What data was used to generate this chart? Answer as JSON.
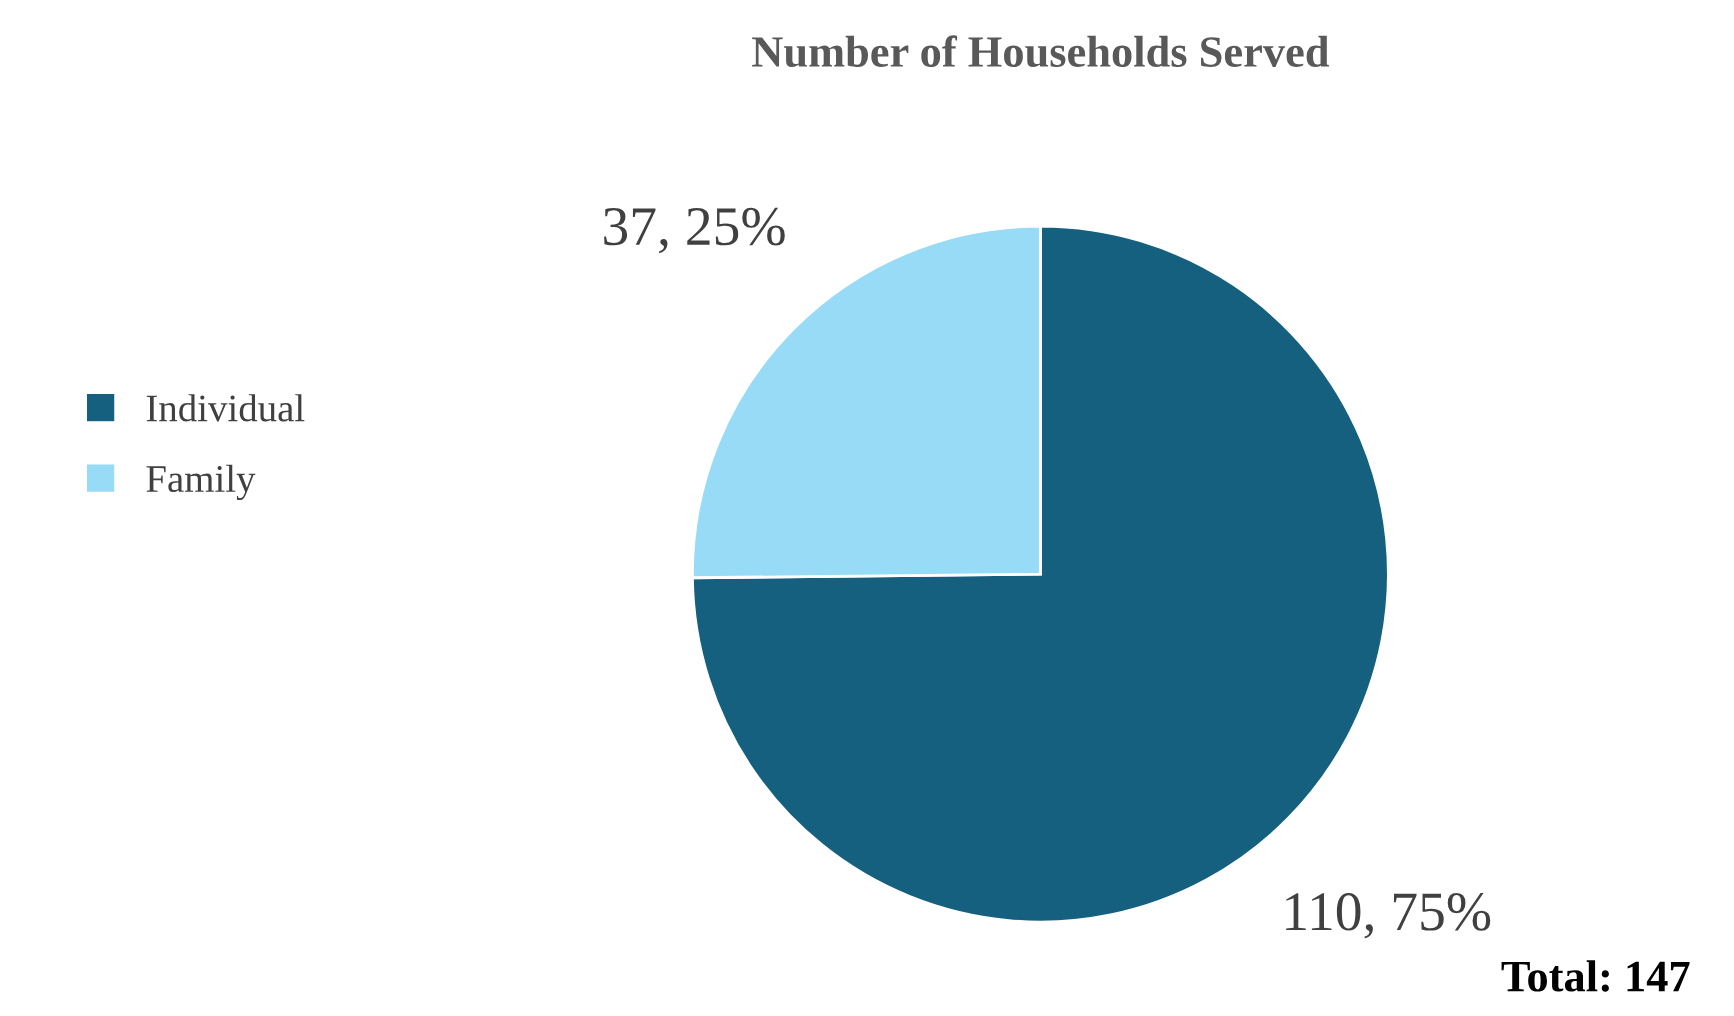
{
  "chart_data": {
    "type": "pie",
    "title": "Number of Households Served",
    "categories": [
      "Individual",
      "Family"
    ],
    "values": [
      110,
      37
    ],
    "colors": [
      "#15607f",
      "#97dbf7"
    ],
    "value_labels": [
      "110, 75%",
      "37, 25%"
    ],
    "legend": "left",
    "annotations": [
      "Total: 147"
    ]
  }
}
